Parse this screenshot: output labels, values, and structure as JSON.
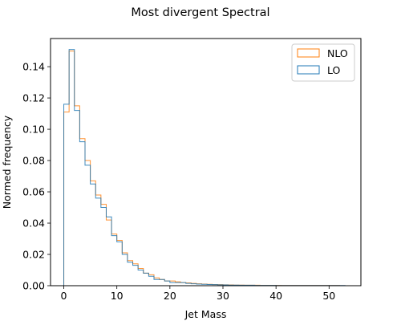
{
  "chart_data": {
    "type": "step-histogram",
    "title": "Most divergent Spectral",
    "xlabel": "Jet Mass",
    "ylabel": "Normed frequency",
    "xlim": [
      -2.5,
      56
    ],
    "ylim": [
      0,
      0.158
    ],
    "x_ticks": [
      0,
      10,
      20,
      30,
      40,
      50
    ],
    "y_ticks": [
      0.0,
      0.02,
      0.04,
      0.06,
      0.08,
      0.1,
      0.12,
      0.14
    ],
    "x_tick_labels": [
      "0",
      "10",
      "20",
      "30",
      "40",
      "50"
    ],
    "y_tick_labels": [
      "0.00",
      "0.02",
      "0.04",
      "0.06",
      "0.08",
      "0.10",
      "0.12",
      "0.14"
    ],
    "bin_edges_start": 0,
    "bin_width": 1,
    "legend_position": "top-right",
    "series": [
      {
        "name": "NLO",
        "color": "#ff7f0e",
        "values": [
          0.111,
          0.15,
          0.115,
          0.094,
          0.08,
          0.067,
          0.058,
          0.052,
          0.042,
          0.033,
          0.029,
          0.021,
          0.016,
          0.014,
          0.011,
          0.008,
          0.007,
          0.005,
          0.004,
          0.003,
          0.003,
          0.0025,
          0.002,
          0.0018,
          0.0015,
          0.0012,
          0.001,
          0.0009,
          0.0008,
          0.0007,
          0.0006,
          0.0005,
          0.0004,
          0.0004,
          0.0003,
          0.0003,
          0.0003,
          0.0002,
          0.0002,
          0.0002,
          0.0002,
          0.0001,
          0.0001,
          0.0001,
          0.0001,
          0.0001,
          0.0001,
          0.0001,
          0.0001,
          0.0001,
          0.0001,
          0.0001
        ]
      },
      {
        "name": "LO",
        "color": "#1f77b4",
        "values": [
          0.116,
          0.151,
          0.112,
          0.092,
          0.077,
          0.065,
          0.056,
          0.05,
          0.044,
          0.032,
          0.028,
          0.02,
          0.015,
          0.013,
          0.01,
          0.008,
          0.006,
          0.004,
          0.004,
          0.003,
          0.002,
          0.002,
          0.002,
          0.0015,
          0.0012,
          0.001,
          0.0009,
          0.0008,
          0.0007,
          0.0006,
          0.0005,
          0.0004,
          0.0004,
          0.0003,
          0.0003,
          0.0003,
          0.0002,
          0.0002,
          0.0002,
          0.0002,
          0.0001,
          0.0001,
          0.0001,
          0.0001,
          0.0001,
          0.0001,
          0.0001,
          0.0001,
          0.0001,
          0.0001,
          0.0001,
          0.0001,
          0.0001
        ]
      }
    ]
  }
}
